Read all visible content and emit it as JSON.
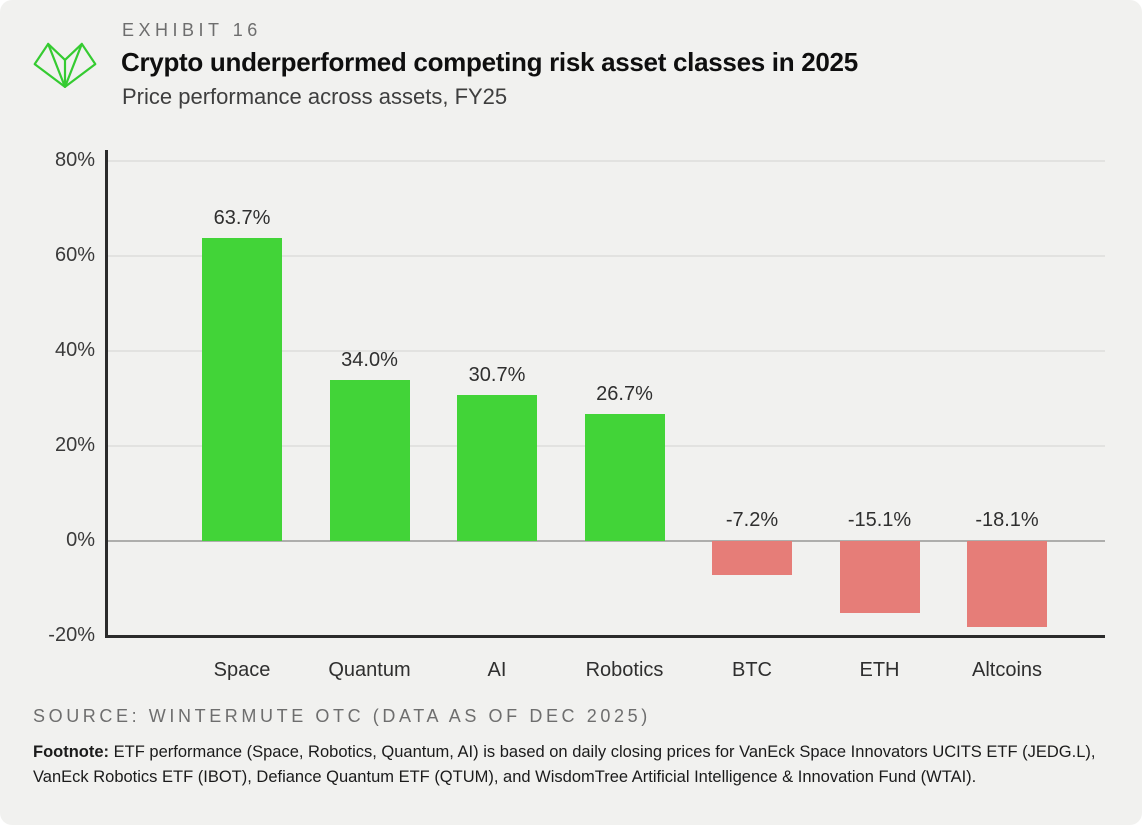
{
  "header": {
    "exhibit_label": "EXHIBIT 16",
    "title": "Crypto underperformed competing risk asset classes in 2025",
    "subtitle": "Price performance across assets, FY25",
    "logo_icon": "wintermute-logo"
  },
  "chart_data": {
    "type": "bar",
    "title": "Crypto underperformed competing risk asset classes in 2025",
    "subtitle": "Price performance across assets, FY25",
    "categories": [
      "Space",
      "Quantum",
      "AI",
      "Robotics",
      "BTC",
      "ETH",
      "Altcoins"
    ],
    "values": [
      63.7,
      34.0,
      30.7,
      26.7,
      -7.2,
      -15.1,
      -18.1
    ],
    "value_labels": [
      "63.7%",
      "34.0%",
      "30.7%",
      "26.7%",
      "-7.2%",
      "-15.1%",
      "-18.1%"
    ],
    "xlabel": "",
    "ylabel": "",
    "ylim": [
      -20,
      80
    ],
    "yticks": [
      80,
      60,
      40,
      20,
      0,
      -20
    ],
    "ytick_labels": [
      "80%",
      "60%",
      "40%",
      "20%",
      "0%",
      "-20%"
    ],
    "grid": true,
    "legend": false,
    "positive_color": "#42d438",
    "negative_color": "#e67d78"
  },
  "source": "SOURCE: WINTERMUTE OTC (DATA AS OF DEC 2025)",
  "footnote": {
    "label": "Footnote:",
    "text": " ETF performance (Space, Robotics, Quantum, AI) is based on daily closing prices for VanEck Space Innovators UCITS ETF (JEDG.L), VanEck Robotics ETF (IBOT), Defiance Quantum ETF (QTUM), and WisdomTree Artificial Intelligence & Innovation Fund (WTAI)."
  },
  "colors": {
    "card_background": "#f1f1ef",
    "positive_bar": "#42d438",
    "negative_bar": "#e67d78",
    "axis": "#2b2b2b",
    "gridline": "#e2e2e0",
    "zero_line": "#aeaeac"
  }
}
